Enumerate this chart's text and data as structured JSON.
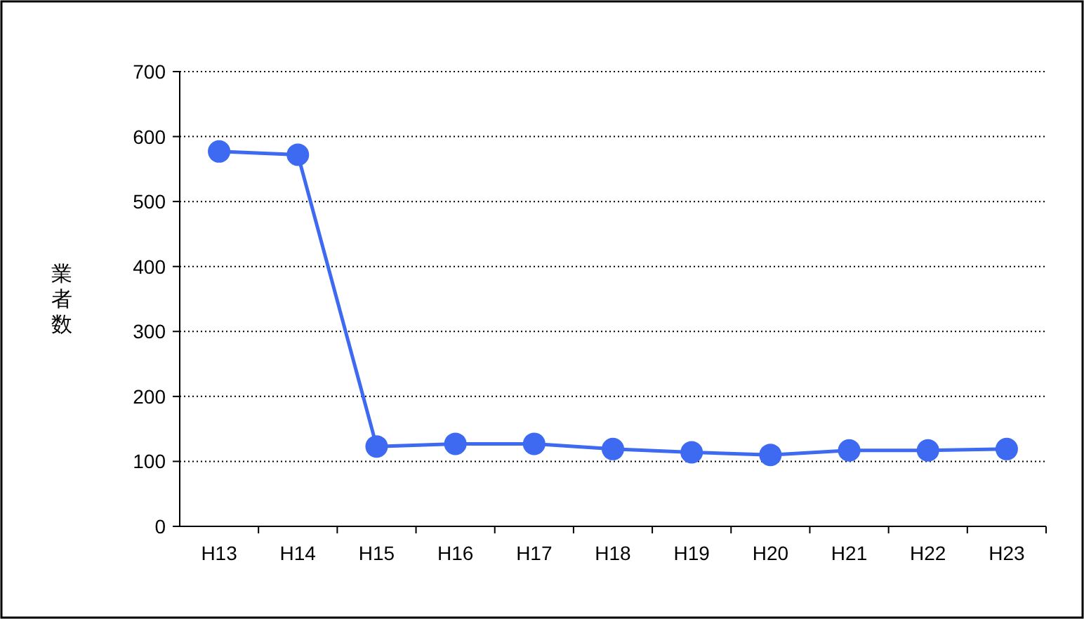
{
  "chart_data": {
    "type": "line",
    "ylabel": "業者数",
    "categories": [
      "H13",
      "H14",
      "H15",
      "H16",
      "H17",
      "H18",
      "H19",
      "H20",
      "H21",
      "H22",
      "H23"
    ],
    "series": [
      {
        "color": "#3d6af0",
        "values": [
          577,
          572,
          123,
          127,
          127,
          119,
          114,
          110,
          117,
          117,
          119
        ]
      }
    ],
    "ylim": [
      0,
      700
    ],
    "yticks": [
      0,
      100,
      200,
      300,
      400,
      500,
      600,
      700
    ],
    "grid": "y",
    "marker": "circle",
    "line_style": "solid"
  }
}
